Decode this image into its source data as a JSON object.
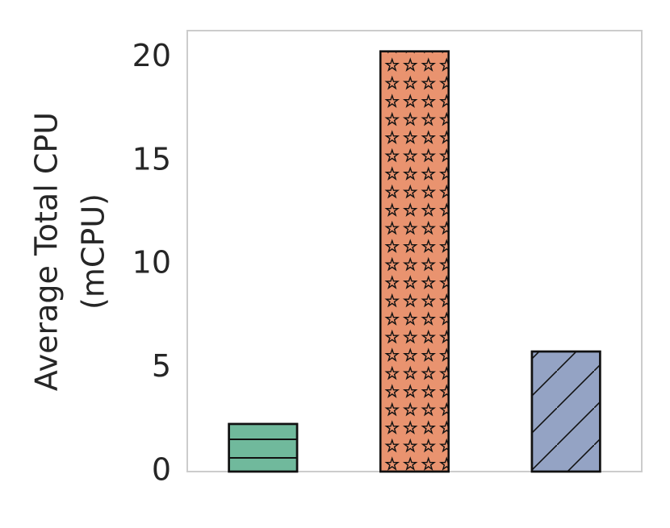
{
  "chart_data": {
    "type": "bar",
    "ylabel": [
      "Average Total CPU",
      "(mCPU)"
    ],
    "values": [
      2.3,
      20.3,
      5.8
    ],
    "colors": [
      "#70b99c",
      "#e9936f",
      "#94a3c4"
    ],
    "hatches": [
      "horizontal",
      "star",
      "diagonal"
    ],
    "ylim": [
      0,
      21.3
    ],
    "yticks": [
      0,
      5,
      10,
      15,
      20
    ],
    "grid": false
  }
}
